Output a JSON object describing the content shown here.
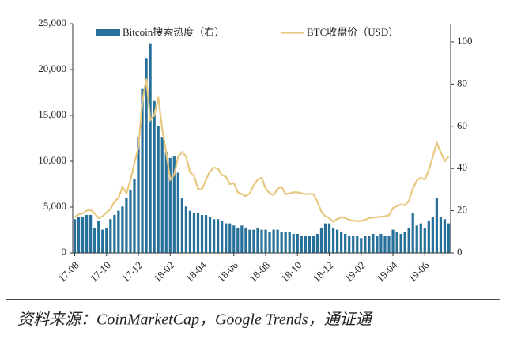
{
  "chart_data": {
    "type": "bar_line",
    "source": "资料来源：CoinMarketCap，Google Trends，通证通",
    "categories": [
      "17-08",
      null,
      null,
      null,
      null,
      null,
      null,
      null,
      "17-10",
      null,
      null,
      null,
      null,
      null,
      null,
      null,
      "17-12",
      null,
      null,
      null,
      null,
      null,
      null,
      null,
      "18-02",
      null,
      null,
      null,
      null,
      null,
      null,
      null,
      "18-04",
      null,
      null,
      null,
      null,
      null,
      null,
      null,
      "18-06",
      null,
      null,
      null,
      null,
      null,
      null,
      null,
      "18-08",
      null,
      null,
      null,
      null,
      null,
      null,
      null,
      "18-10",
      null,
      null,
      null,
      null,
      null,
      null,
      null,
      "18-12",
      null,
      null,
      null,
      null,
      null,
      null,
      null,
      "19-02",
      null,
      null,
      null,
      null,
      null,
      null,
      null,
      "19-04",
      null,
      null,
      null,
      null,
      null,
      null,
      null,
      "19-06",
      null,
      null,
      null,
      null,
      null,
      null
    ],
    "series": [
      {
        "name": "Bitcoin搜索热度（右）",
        "type": "bar",
        "axis": "y2",
        "color": "#27709a",
        "values": [
          16,
          17,
          17,
          18,
          18,
          12,
          15,
          11,
          12,
          16,
          18,
          20,
          22,
          26,
          30,
          35,
          55,
          78,
          92,
          99,
          72,
          60,
          55,
          48,
          45,
          46,
          38,
          26,
          22,
          20,
          19,
          19,
          18,
          18,
          17,
          16,
          16,
          15,
          14,
          14,
          13,
          12,
          13,
          12,
          11,
          11,
          12,
          11,
          11,
          10,
          11,
          11,
          10,
          10,
          10,
          9,
          9,
          8,
          8,
          8,
          8,
          9,
          12,
          14,
          14,
          12,
          11,
          10,
          9,
          8,
          8,
          8,
          7,
          8,
          8,
          9,
          8,
          9,
          8,
          8,
          11,
          10,
          9,
          10,
          12,
          19,
          13,
          14,
          12,
          15,
          17,
          26,
          17,
          16,
          14
        ]
      },
      {
        "name": "BTC收盘价（USD）",
        "type": "line",
        "color": "#e8c77e",
        "values": [
          3900,
          4200,
          4300,
          4600,
          4700,
          4300,
          3800,
          4000,
          4400,
          4800,
          5600,
          6000,
          7200,
          6500,
          7900,
          9800,
          11500,
          16500,
          19000,
          14500,
          15000,
          17000,
          13500,
          11000,
          8000,
          8500,
          10500,
          11000,
          10500,
          8800,
          8400,
          7000,
          6900,
          8000,
          8900,
          9300,
          9200,
          8500,
          8300,
          7500,
          7600,
          6600,
          6400,
          6200,
          6500,
          7400,
          8000,
          8200,
          7000,
          6500,
          6300,
          7000,
          7200,
          6400,
          6500,
          6600,
          6600,
          6500,
          6400,
          6450,
          6400,
          5600,
          4500,
          4000,
          3800,
          3400,
          3700,
          3900,
          3800,
          3600,
          3550,
          3450,
          3500,
          3600,
          3800,
          3850,
          3900,
          3950,
          4000,
          4100,
          4900,
          5100,
          5300,
          5200,
          5700,
          7000,
          7900,
          8200,
          8000,
          9000,
          10500,
          12000,
          11000,
          10000,
          10500
        ]
      }
    ],
    "ylim": [
      0,
      25000
    ],
    "yticks": [
      0,
      {
        "value": 5000,
        "label": "5,000"
      },
      {
        "value": 10000,
        "label": "10,000"
      },
      {
        "value": 15000,
        "label": "15,000"
      },
      {
        "value": 20000,
        "label": "20,000"
      },
      {
        "value": 25000,
        "label": "25,000"
      }
    ],
    "y2lim": [
      0,
      108.6
    ],
    "y2ticks": [
      0,
      20,
      40,
      60,
      80,
      100
    ],
    "legend": "top"
  }
}
